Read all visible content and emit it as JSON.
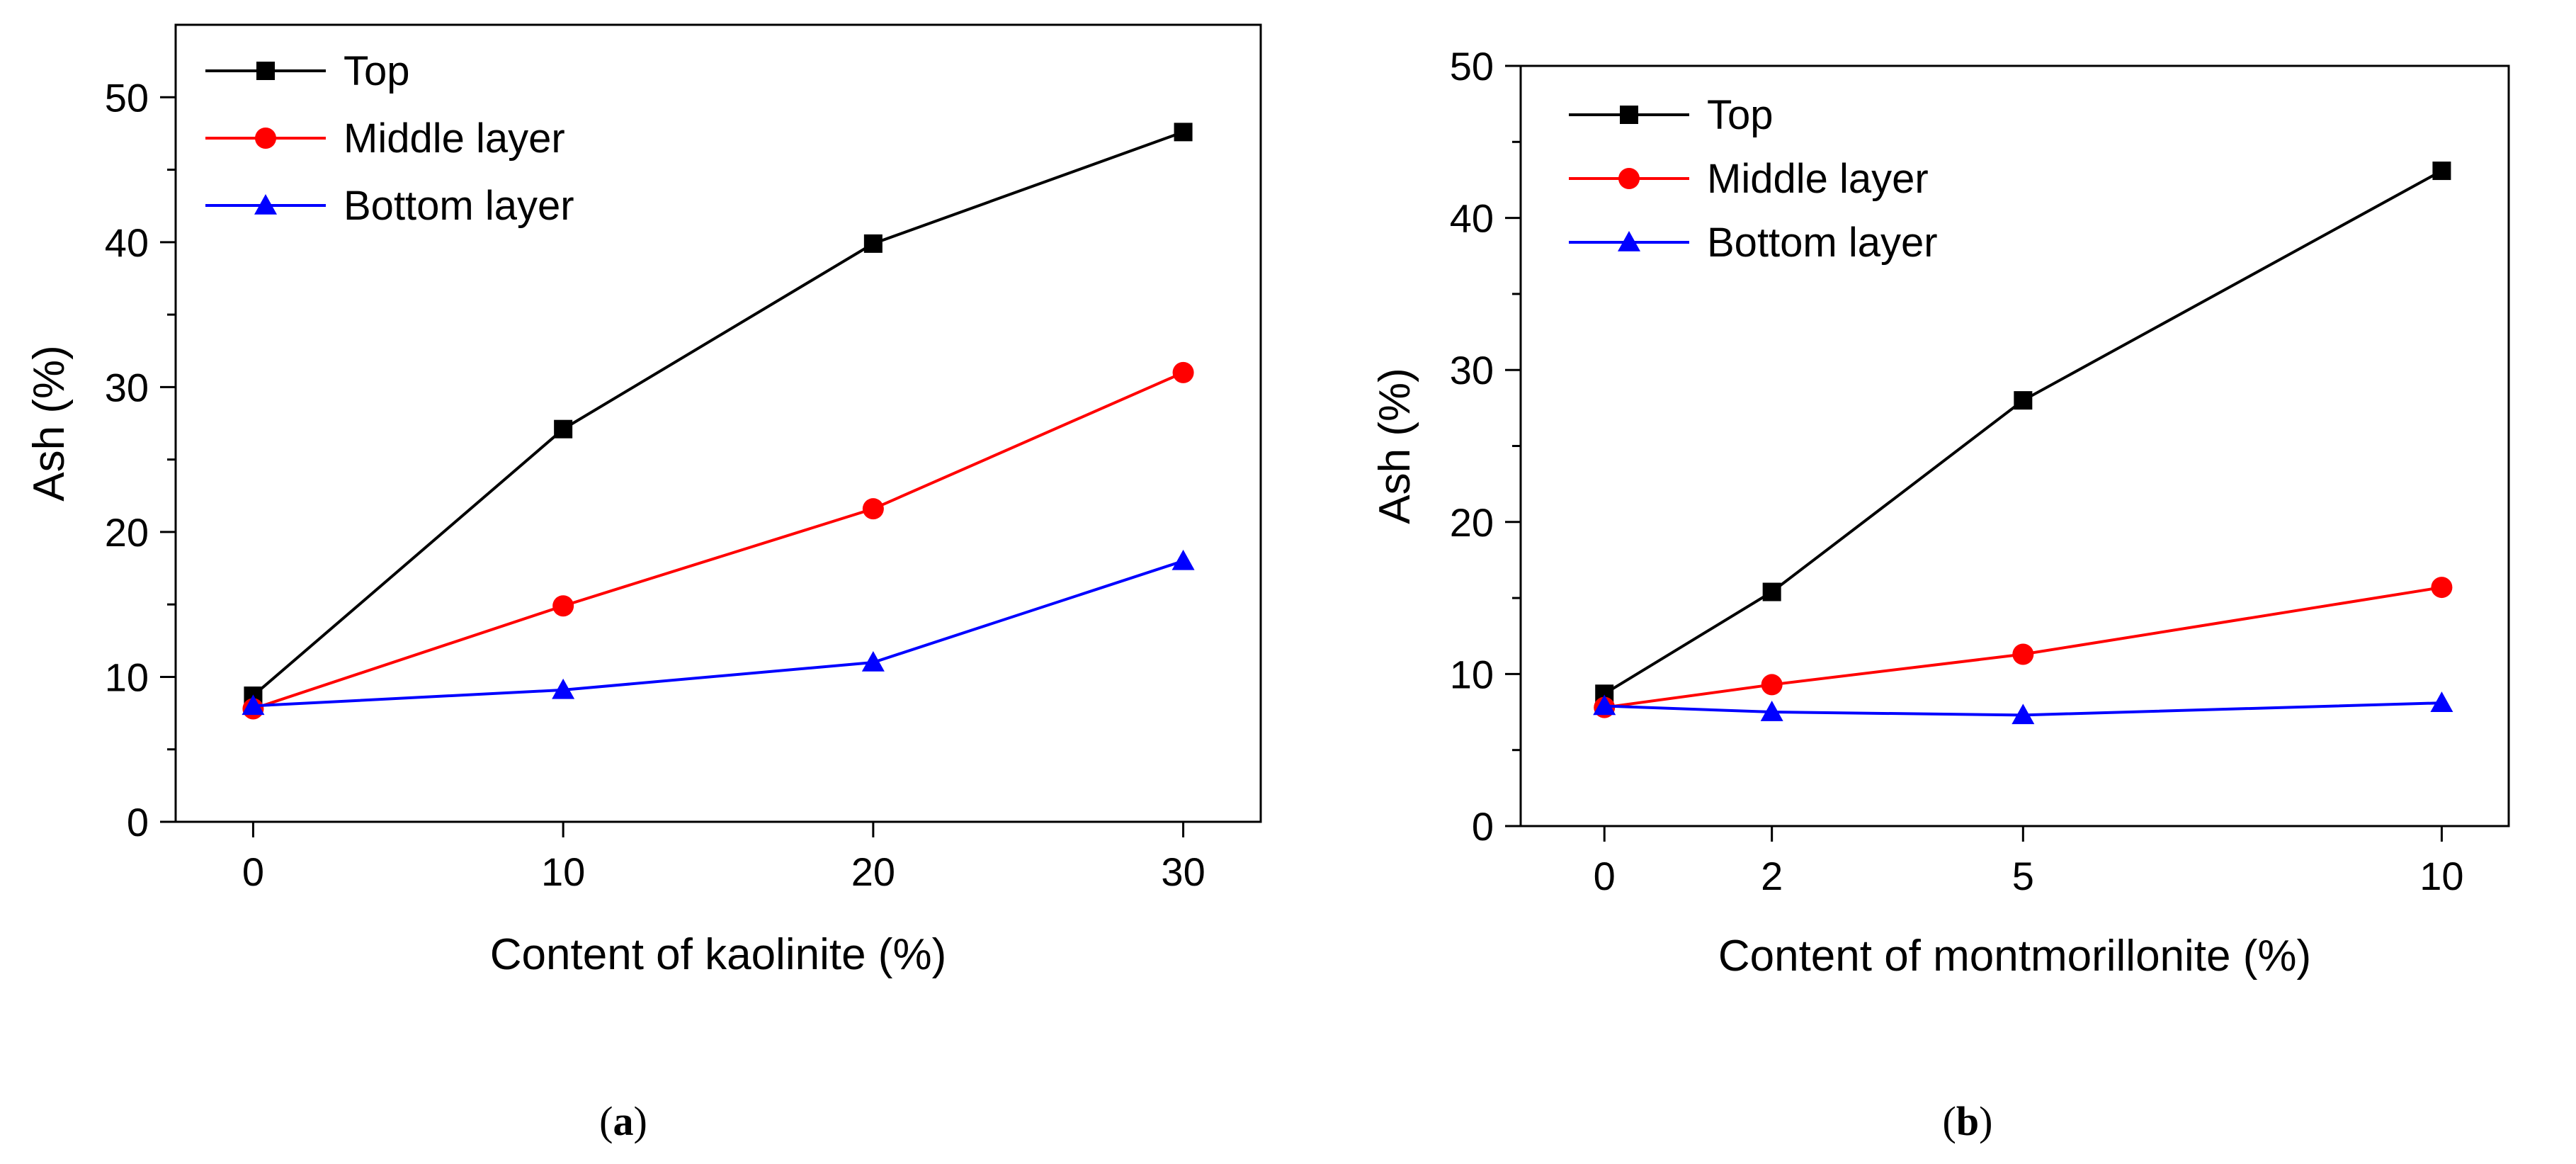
{
  "chart_data": [
    {
      "id": "a",
      "type": "line",
      "caption": "a",
      "xlabel": "Content of kaolinite (%)",
      "ylabel": "Ash (%)",
      "x": [
        0,
        10,
        20,
        30
      ],
      "x_ticks": [
        "0",
        "10",
        "20",
        "30"
      ],
      "xlim": [
        -2.5,
        32.5
      ],
      "ylim": [
        0,
        55
      ],
      "y_ticks": [
        0,
        10,
        20,
        30,
        40,
        50
      ],
      "legend_position": "top-left",
      "series": [
        {
          "name": "Top",
          "color": "#000000",
          "marker": "square",
          "values": [
            8.7,
            27.1,
            39.9,
            47.6
          ]
        },
        {
          "name": "Middle layer",
          "color": "#ff0000",
          "marker": "circle",
          "values": [
            7.8,
            14.9,
            21.6,
            31.0
          ]
        },
        {
          "name": "Bottom layer",
          "color": "#0000ff",
          "marker": "triangle",
          "values": [
            8.0,
            9.1,
            11.0,
            18.0
          ]
        }
      ]
    },
    {
      "id": "b",
      "type": "line",
      "caption": "b",
      "xlabel": "Content of montmorillonite (%)",
      "ylabel": "Ash (%)",
      "x": [
        0,
        2,
        5,
        10
      ],
      "x_ticks": [
        "0",
        "2",
        "5",
        "10"
      ],
      "xlim": [
        -1,
        10.8
      ],
      "ylim": [
        0,
        50
      ],
      "y_ticks": [
        0,
        10,
        20,
        30,
        40,
        50
      ],
      "legend_position": "top-left",
      "series": [
        {
          "name": "Top",
          "color": "#000000",
          "marker": "square",
          "values": [
            8.7,
            15.4,
            28.0,
            43.1
          ]
        },
        {
          "name": "Middle layer",
          "color": "#ff0000",
          "marker": "circle",
          "values": [
            7.8,
            9.3,
            11.3,
            15.7
          ]
        },
        {
          "name": "Bottom layer",
          "color": "#0000ff",
          "marker": "triangle",
          "values": [
            7.9,
            7.5,
            7.3,
            8.1
          ]
        }
      ]
    }
  ]
}
